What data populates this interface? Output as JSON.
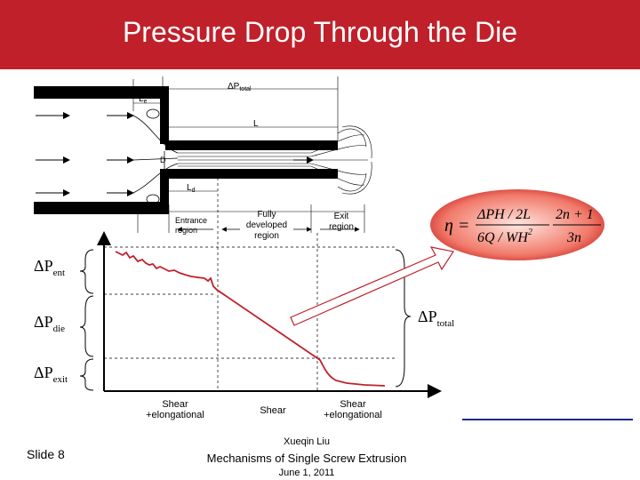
{
  "slide": {
    "title": "Pressure Drop Through the Die",
    "slide_number": "Slide 8",
    "author": "Xueqin Liu",
    "course": "Mechanisms of Single Screw Extrusion",
    "date": "June 1, 2011"
  },
  "die_schematic": {
    "labels": {
      "le": "L",
      "le_sub": "e",
      "l": "L",
      "ld": "L",
      "ld_sub": "d",
      "d": "D",
      "delta_p_total_top": "ΔP",
      "delta_p_total_top_sub": "total",
      "entrance": "Entrance\nregion",
      "fully_developed": "Fully\ndeveloped\nregion",
      "exit": "Exit\nregion"
    }
  },
  "pressure_plot": {
    "labels": {
      "dp_ent": "ΔP",
      "dp_ent_sub": "ent",
      "dp_die": "ΔP",
      "dp_die_sub": "die",
      "dp_exit": "ΔP",
      "dp_exit_sub": "exit",
      "dp_total": "ΔP",
      "dp_total_sub": "total"
    },
    "x_regions": [
      "Shear\n+elongational",
      "Shear",
      "Shear\n+elongational"
    ]
  },
  "equation": {
    "lhs": "η =",
    "num1": "ΔPH / 2L",
    "den1": "6Q / WH",
    "den1_exp": "2",
    "num2": "2n + 1",
    "den2": "3n"
  },
  "colors": {
    "title_bg": "#c0202a",
    "curve": "#c0202a",
    "equation_bg": "#c41a1a",
    "bottom_rule": "#1f2a8a"
  }
}
